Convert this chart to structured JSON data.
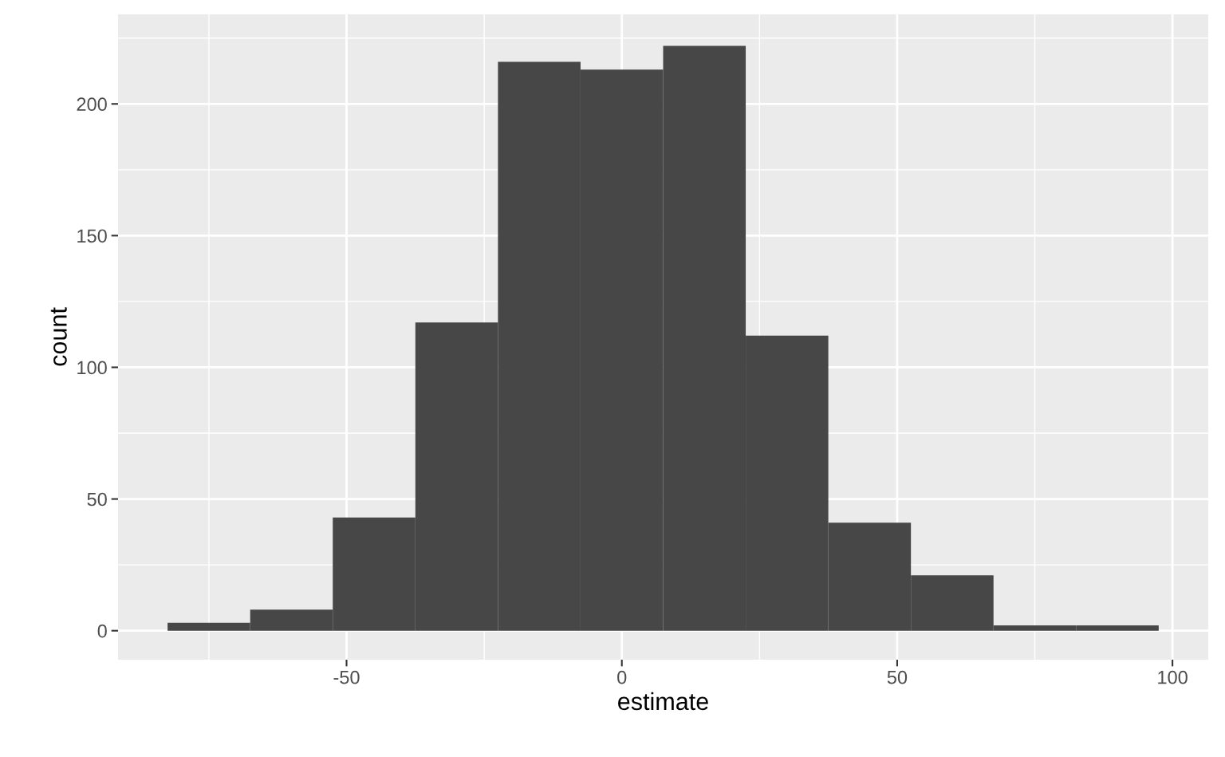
{
  "chart_data": {
    "type": "histogram",
    "xlabel": "estimate",
    "ylabel": "count",
    "bins": [
      -82.5,
      -67.5,
      -52.5,
      -37.5,
      -22.5,
      -7.5,
      7.5,
      22.5,
      37.5,
      52.5,
      67.5,
      82.5,
      97.5
    ],
    "values": [
      3,
      8,
      43,
      117,
      216,
      213,
      222,
      112,
      41,
      21,
      2,
      2
    ],
    "color": "#474747",
    "xlim": [
      -91.5,
      106.5
    ],
    "ylim": [
      -11,
      234
    ],
    "xticks": [
      -50,
      0,
      50,
      100
    ],
    "yticks": [
      0,
      50,
      100,
      150,
      200
    ],
    "grid": true
  }
}
